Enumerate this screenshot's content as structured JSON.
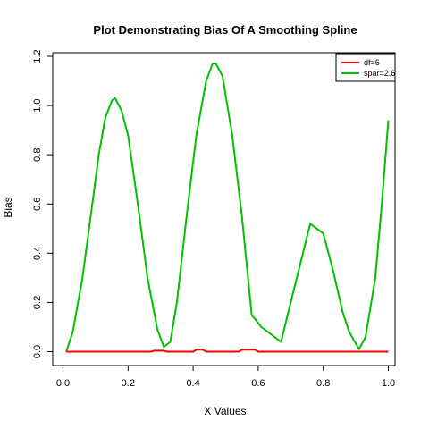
{
  "chart_data": {
    "type": "line",
    "title": "Plot Demonstrating Bias Of A Smoothing Spline",
    "xlabel": "X Values",
    "ylabel": "Bias",
    "xlim": [
      0,
      1
    ],
    "ylim": [
      0,
      1.2
    ],
    "x_ticks": [
      "0.0",
      "0.2",
      "0.4",
      "0.6",
      "0.8",
      "1.0"
    ],
    "y_ticks": [
      "0.0",
      "0.2",
      "0.4",
      "0.6",
      "0.8",
      "1.0",
      "1.2"
    ],
    "grid": false,
    "legend_position": "top-right",
    "series": [
      {
        "name": "df=6",
        "color": "#ff0000",
        "x": [
          0.01,
          0.27,
          0.28,
          0.31,
          0.32,
          0.4,
          0.41,
          0.43,
          0.44,
          0.54,
          0.55,
          0.59,
          0.6,
          1.0
        ],
        "y": [
          0.0,
          0.0,
          0.004,
          0.004,
          0.0,
          0.0,
          0.008,
          0.008,
          0.0,
          0.0,
          0.008,
          0.008,
          0.0,
          0.0
        ]
      },
      {
        "name": "spar=2.6",
        "color": "#00c000",
        "x": [
          0.01,
          0.03,
          0.06,
          0.09,
          0.11,
          0.13,
          0.15,
          0.16,
          0.18,
          0.2,
          0.23,
          0.26,
          0.29,
          0.31,
          0.33,
          0.35,
          0.38,
          0.41,
          0.44,
          0.46,
          0.47,
          0.49,
          0.52,
          0.55,
          0.58,
          0.61,
          0.64,
          0.67,
          0.7,
          0.73,
          0.76,
          0.78,
          0.8,
          0.83,
          0.86,
          0.88,
          0.91,
          0.93,
          0.96,
          0.98,
          1.0
        ],
        "y": [
          0.0,
          0.08,
          0.3,
          0.6,
          0.8,
          0.95,
          1.02,
          1.03,
          0.98,
          0.88,
          0.6,
          0.3,
          0.09,
          0.02,
          0.04,
          0.2,
          0.55,
          0.88,
          1.1,
          1.17,
          1.17,
          1.12,
          0.88,
          0.55,
          0.15,
          0.1,
          0.07,
          0.04,
          0.2,
          0.36,
          0.52,
          0.5,
          0.48,
          0.33,
          0.16,
          0.08,
          0.01,
          0.06,
          0.3,
          0.6,
          0.94
        ]
      }
    ]
  }
}
